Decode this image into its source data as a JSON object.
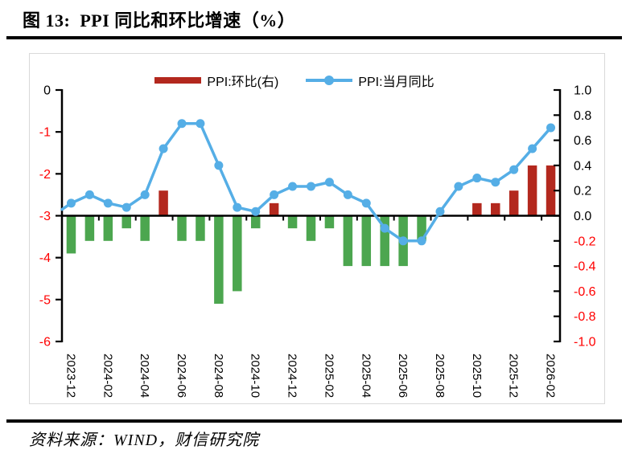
{
  "figure": {
    "title": "图 13:  PPI 同比和环比增速（%）",
    "source": "资料来源：WIND，财信研究院"
  },
  "legend": {
    "bar_label": "PPI:环比(右)",
    "line_label": "PPI:当月同比"
  },
  "colors": {
    "bar_positive": "#b3281e",
    "bar_negative": "#4ca64f",
    "line": "#55aee6",
    "marker": "#55aee6",
    "axis": "#000000",
    "tick_label_positive": "#000000",
    "tick_label_negative": "#ff0000",
    "chart_border": "#d9d9d9"
  },
  "chart_data": {
    "type": "bar+line",
    "title": "PPI 同比和环比增速（%）",
    "x": [
      "2023-12",
      "2024-01",
      "2024-02",
      "2024-03",
      "2024-04",
      "2024-05",
      "2024-06",
      "2024-07",
      "2024-08",
      "2024-09",
      "2024-10",
      "2024-11",
      "2024-12",
      "2025-01",
      "2025-02",
      "2025-03",
      "2025-04",
      "2025-05",
      "2025-06",
      "2025-07",
      "2025-08",
      "2025-09",
      "2025-10",
      "2025-11",
      "2025-12",
      "2026-01",
      "2026-02"
    ],
    "x_tick_labels": [
      "2023-12",
      "2024-02",
      "2024-04",
      "2024-06",
      "2024-08",
      "2024-10",
      "2024-12",
      "2025-02",
      "2025-04",
      "2025-06",
      "2025-08",
      "2025-10",
      "2025-12",
      "2026-02"
    ],
    "series": [
      {
        "name": "PPI:环比(右)",
        "type": "bar",
        "axis": "right",
        "values": [
          -0.3,
          -0.2,
          -0.2,
          -0.1,
          -0.2,
          0.2,
          -0.2,
          -0.2,
          -0.7,
          -0.6,
          -0.1,
          0.1,
          -0.1,
          -0.2,
          -0.1,
          -0.4,
          -0.4,
          -0.4,
          -0.4,
          -0.2,
          0.0,
          0.0,
          0.1,
          0.1,
          0.2,
          0.4,
          0.4
        ]
      },
      {
        "name": "PPI:当月同比",
        "type": "line",
        "axis": "left",
        "values": [
          -2.7,
          -2.5,
          -2.7,
          -2.8,
          -2.5,
          -1.4,
          -0.8,
          -0.8,
          -1.8,
          -2.8,
          -2.9,
          -2.5,
          -2.3,
          -2.3,
          -2.2,
          -2.5,
          -2.7,
          -3.3,
          -3.6,
          -3.6,
          -2.9,
          -2.3,
          -2.1,
          -2.2,
          -1.9,
          -1.4,
          -0.9
        ],
        "lead_in": {
          "x": "2023-11",
          "value": -3.0,
          "note": "line enters plot at left axis, no marker"
        }
      }
    ],
    "left_axis": {
      "min": -6,
      "max": 0,
      "ticks": [
        0,
        -1,
        -2,
        -3,
        -4,
        -5,
        -6
      ]
    },
    "right_axis": {
      "min": -1.0,
      "max": 1.0,
      "ticks": [
        1.0,
        0.8,
        0.6,
        0.4,
        0.2,
        0.0,
        -0.2,
        -0.4,
        -0.6,
        -0.8,
        -1.0
      ]
    },
    "baseline_left_value": -3,
    "grid": false,
    "legend_position": "top-center"
  }
}
